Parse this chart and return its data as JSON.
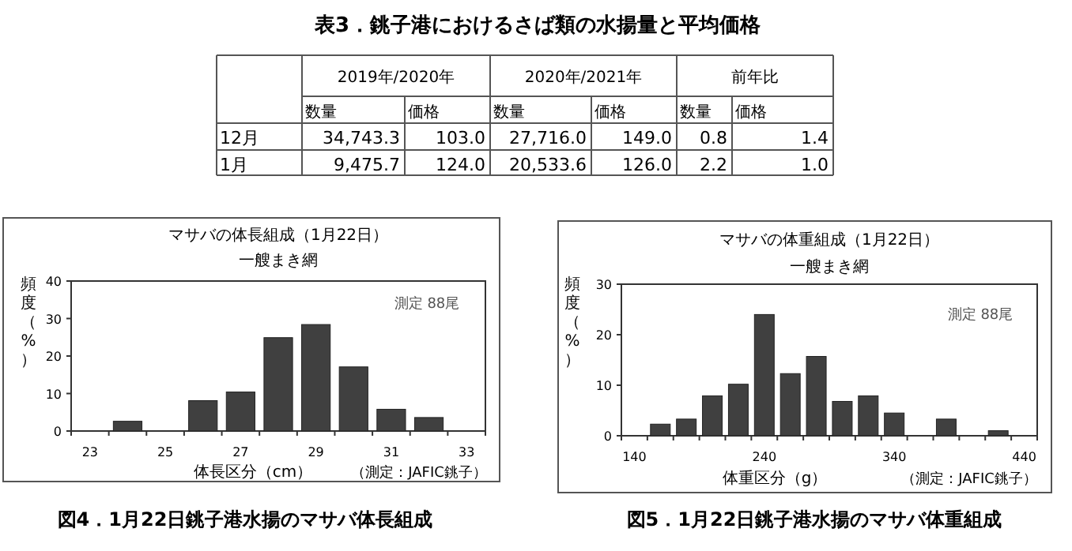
{
  "chart_data": [
    {
      "type": "other",
      "title": "表3．銚子港におけるさば類の水揚量と平均価格",
      "annotations": [
        "2019年/2020年",
        "2020年/2021年",
        "前年比"
      ],
      "categories": [
        "数量",
        "価格",
        "数量",
        "価格",
        "数量",
        "価格"
      ],
      "y_categories": [
        "12月",
        "1月"
      ],
      "cell_labels": [
        [
          "34,743.3",
          "103.0",
          "27,716.0",
          "149.0",
          "0.8",
          "1.4"
        ],
        [
          "9,475.7",
          "124.0",
          "20,533.6",
          "126.0",
          "2.2",
          "1.0"
        ]
      ]
    },
    {
      "type": "bar",
      "title": "マサバの体長組成（1月22日）",
      "subtitle": "一艘まき網",
      "xlabel": "体長区分（cm）",
      "ylabel": "頻度（%）",
      "annotations": [
        "測定 88尾",
        "（測定：JAFIC銚子）",
        "図4．1月22日銚子港水揚のマサバ体長組成"
      ],
      "categories": [
        "23",
        null,
        "25",
        null,
        "27",
        null,
        "29",
        null,
        "31",
        null,
        "33"
      ],
      "values": [
        0,
        2.6,
        0,
        8.1,
        10.4,
        24.9,
        28.4,
        17.1,
        5.8,
        3.6,
        0
      ],
      "color": "#404040",
      "ylim": [
        0,
        40
      ],
      "yticks": [
        0,
        10,
        20,
        30,
        40
      ]
    },
    {
      "type": "bar",
      "title": "マサバの体重組成（1月22日）",
      "subtitle": "一艘まき網",
      "xlabel": "体重区分（g）",
      "ylabel": "頻度（%）",
      "annotations": [
        "測定 88尾",
        "（測定：JAFIC銚子）",
        "図5．1月22日銚子港水揚のマサバ体重組成"
      ],
      "categories": [
        "140",
        null,
        null,
        null,
        null,
        "240",
        null,
        null,
        null,
        null,
        "340",
        null,
        null,
        null,
        null,
        "440"
      ],
      "values": [
        0,
        2.3,
        3.3,
        7.9,
        10.2,
        24,
        12.3,
        15.7,
        6.8,
        7.9,
        4.5,
        0,
        3.3,
        0,
        1.0,
        0
      ],
      "color": "#404040",
      "ylim": [
        0,
        30
      ],
      "yticks": [
        0,
        10,
        20,
        30
      ]
    }
  ]
}
